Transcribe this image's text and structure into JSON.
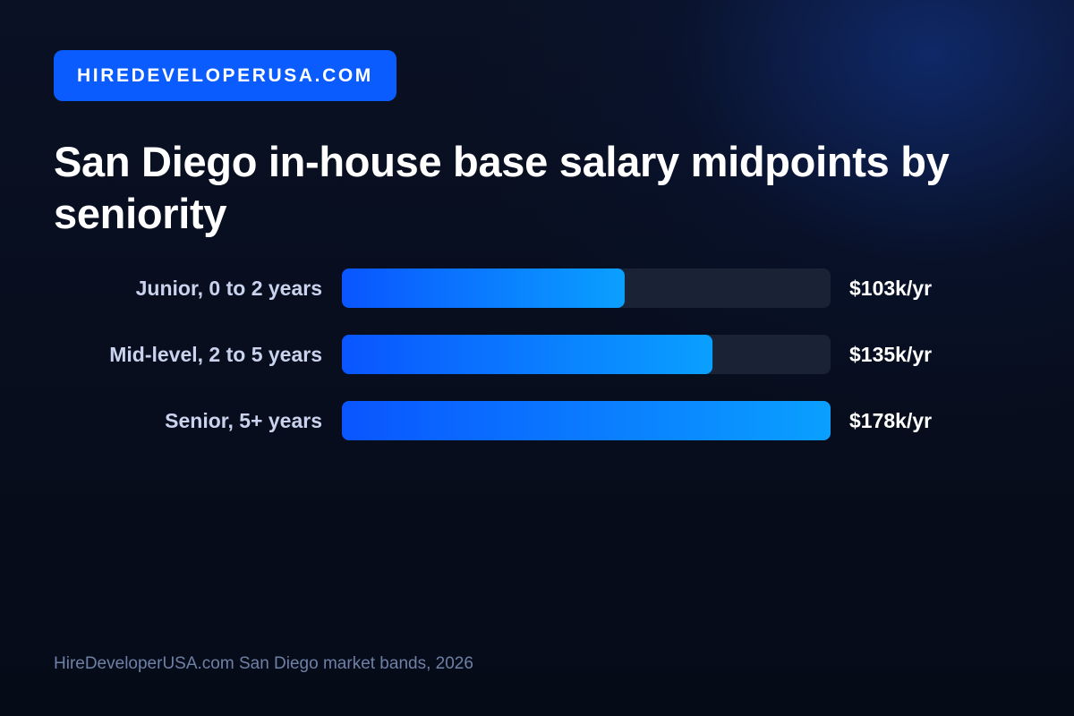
{
  "brand": {
    "badge_text": "HIREDEVELOPERUSA.COM",
    "accent_color": "#0a5cff"
  },
  "chart_data": {
    "type": "bar",
    "orientation": "horizontal",
    "title": "San Diego in-house base salary midpoints by seniority",
    "categories": [
      "Junior, 0 to 2 years",
      "Mid-level, 2 to 5 years",
      "Senior, 5+ years"
    ],
    "values": [
      103,
      135,
      178
    ],
    "value_labels": [
      "$103k/yr",
      "$135k/yr",
      "$178k/yr"
    ],
    "unit": "$k/yr",
    "xlim": [
      0,
      178
    ],
    "grid": false,
    "legend": "none",
    "colors": {
      "bar_start": "#0a55ff",
      "bar_end": "#0aa0ff",
      "track": "#1a2236",
      "category_label": "#c9d3ee",
      "value_label": "#ffffff"
    }
  },
  "footer": {
    "source_text": "HireDeveloperUSA.com San Diego market bands, 2026"
  }
}
